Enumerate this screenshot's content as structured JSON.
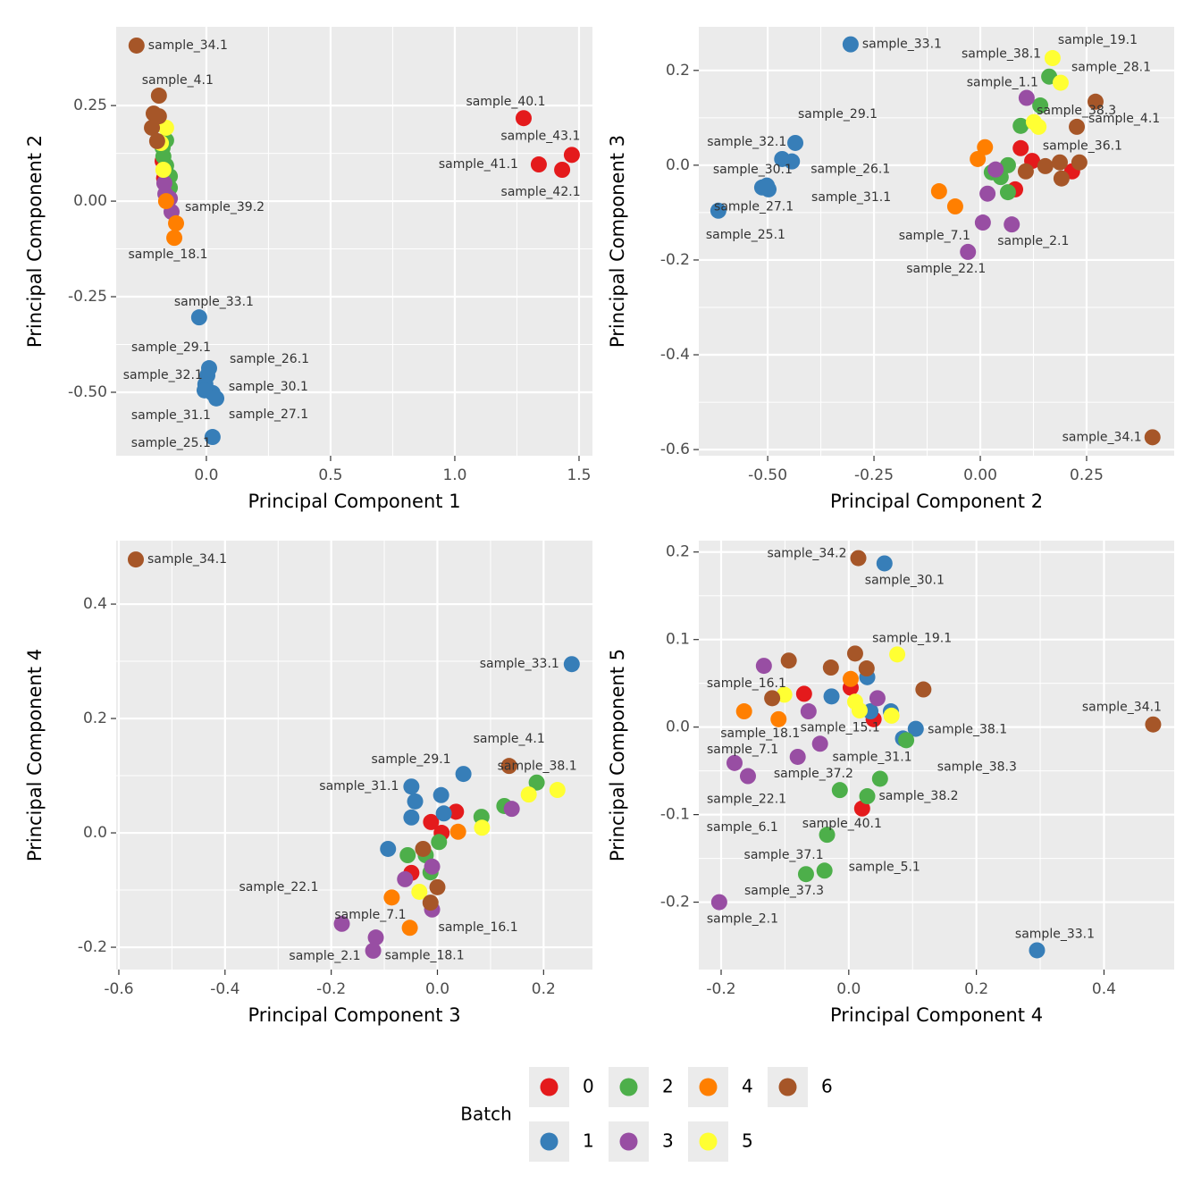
{
  "legend_title": "Batch",
  "chart_data": [
    {
      "type": "scatter",
      "xlabel": "Principal Component 1",
      "ylabel": "Principal Component 2",
      "grid": true,
      "xlim": [
        -0.363,
        1.554
      ],
      "ylim": [
        -0.666,
        0.456
      ],
      "xticks": [
        {
          "value": 0,
          "label": "0.0"
        },
        0.5,
        {
          "value": 1,
          "label": "1.0"
        },
        1.5
      ],
      "yticks": [
        {
          "value": -0.5,
          "label": "-0.50"
        },
        -0.25,
        {
          "value": 0,
          "label": "0.00"
        },
        0.25
      ],
      "series": [
        {
          "name": "0",
          "color": "#E41A1C",
          "x": [
            1.277,
            1.471,
            1.338,
            1.432,
            -0.176,
            -0.17
          ],
          "values": [
            0.217,
            0.121,
            0.096,
            0.082,
            0.105,
            0.06
          ],
          "labels": [
            "sample_40.1",
            "sample_43.1",
            "sample_41.1",
            "sample_42.1",
            null,
            null
          ]
        },
        {
          "name": "1",
          "color": "#377EB8",
          "x": [
            -0.029,
            0.011,
            0.004,
            -0.004,
            0.025,
            -0.007,
            0.04,
            0.025
          ],
          "values": [
            -0.304,
            -0.437,
            -0.456,
            -0.479,
            -0.502,
            -0.495,
            -0.516,
            -0.617
          ],
          "labels": [
            "sample_33.1",
            "sample_26.1",
            "sample_29.1",
            "sample_32.1",
            "sample_30.1",
            "sample_31.1",
            "sample_27.1",
            "sample_25.1"
          ]
        },
        {
          "name": "2",
          "color": "#4DAF4A",
          "x": [
            -0.162,
            -0.176,
            -0.162,
            -0.147,
            -0.147,
            -0.173
          ],
          "values": [
            0.159,
            0.14,
            0.093,
            0.065,
            0.035,
            0.117
          ],
          "labels": [
            null,
            null,
            null,
            null,
            null,
            null
          ]
        },
        {
          "name": "3",
          "color": "#984EA3",
          "x": [
            -0.165,
            -0.14,
            -0.147,
            -0.169
          ],
          "values": [
            0.019,
            -0.028,
            0.007,
            0.047
          ],
          "labels": [
            null,
            null,
            null,
            null
          ]
        },
        {
          "name": "4",
          "color": "#FF7F00",
          "x": [
            -0.122,
            -0.129,
            -0.162
          ],
          "values": [
            -0.058,
            -0.096,
            0.0
          ],
          "labels": [
            "sample_39.2",
            "sample_18.1",
            null
          ]
        },
        {
          "name": "5",
          "color": "#FFFF33",
          "x": [
            -0.162,
            -0.173,
            -0.183
          ],
          "values": [
            0.192,
            0.082,
            0.152
          ],
          "labels": [
            null,
            null,
            null
          ]
        },
        {
          "name": "6",
          "color": "#A65628",
          "x": [
            -0.281,
            -0.191,
            -0.212,
            -0.219,
            -0.198,
            -0.191
          ],
          "values": [
            0.407,
            0.276,
            0.229,
            0.192,
            0.157,
            0.222
          ],
          "labels": [
            "sample_34.1",
            "sample_4.1",
            null,
            null,
            null,
            null
          ]
        }
      ]
    },
    {
      "type": "scatter",
      "xlabel": "Principal Component 2",
      "ylabel": "Principal Component 3",
      "grid": true,
      "xlim": [
        -0.662,
        0.456
      ],
      "ylim": [
        -0.613,
        0.292
      ],
      "xticks": [
        {
          "value": -0.5,
          "label": "-0.50"
        },
        -0.25,
        {
          "value": 0,
          "label": "0.00"
        },
        0.25
      ],
      "yticks": [
        -0.6,
        -0.4,
        -0.2,
        {
          "value": 0,
          "label": "0.0"
        },
        0.2
      ],
      "series": [
        {
          "name": "0",
          "color": "#E41A1C",
          "x": [
            0.095,
            0.122,
            0.082,
            0.216
          ],
          "values": [
            0.036,
            0.009,
            -0.051,
            -0.013
          ],
          "labels": [
            null,
            null,
            null,
            null
          ]
        },
        {
          "name": "1",
          "color": "#377EB8",
          "x": [
            -0.305,
            -0.435,
            -0.466,
            -0.443,
            -0.513,
            -0.498,
            -0.502,
            -0.616
          ],
          "values": [
            0.255,
            0.047,
            0.013,
            0.008,
            -0.047,
            -0.051,
            -0.043,
            -0.096
          ],
          "labels": [
            "sample_33.1",
            "sample_29.1",
            "sample_32.1",
            "sample_26.1",
            "sample_30.1",
            "sample_31.1",
            "sample_27.1",
            "sample_25.1"
          ]
        },
        {
          "name": "2",
          "color": "#4DAF4A",
          "x": [
            0.162,
            0.141,
            0.095,
            0.065,
            0.027,
            0.048,
            0.065
          ],
          "values": [
            0.187,
            0.126,
            0.083,
            0,
            -0.015,
            -0.025,
            -0.057
          ],
          "labels": [
            "sample_38.1",
            "sample_38.3",
            null,
            null,
            null,
            null,
            null
          ]
        },
        {
          "name": "3",
          "color": "#984EA3",
          "x": [
            0.109,
            0.006,
            0.074,
            -0.029,
            0.017,
            0.036
          ],
          "values": [
            0.142,
            -0.121,
            -0.125,
            -0.183,
            -0.06,
            -0.009
          ],
          "labels": [
            "sample_1.1",
            "sample_7.1",
            "sample_2.1",
            "sample_22.1",
            null,
            null
          ]
        },
        {
          "name": "4",
          "color": "#FF7F00",
          "x": [
            0.011,
            -0.006,
            -0.097,
            -0.059
          ],
          "values": [
            0.038,
            0.013,
            -0.055,
            -0.087
          ],
          "labels": [
            null,
            null,
            null,
            null
          ]
        },
        {
          "name": "5",
          "color": "#FFFF33",
          "x": [
            0.17,
            0.189,
            0.137,
            0.126
          ],
          "values": [
            0.226,
            0.174,
            0.081,
            0.091
          ],
          "labels": [
            "sample_19.1",
            "sample_28.1",
            null,
            null
          ]
        },
        {
          "name": "6",
          "color": "#A65628",
          "x": [
            0.405,
            0.227,
            0.191,
            0.271,
            0.153,
            0.187,
            0.233,
            0.107
          ],
          "values": [
            -0.574,
            0.081,
            -0.028,
            0.134,
            -0.002,
            0.006,
            0.006,
            -0.013
          ],
          "labels": [
            "sample_34.1",
            "sample_4.1",
            "sample_36.1",
            null,
            null,
            null,
            null,
            null
          ]
        }
      ]
    },
    {
      "type": "scatter",
      "xlabel": "Principal Component 3",
      "ylabel": "Principal Component 4",
      "grid": true,
      "xlim": [
        -0.605,
        0.292
      ],
      "ylim": [
        -0.239,
        0.511
      ],
      "xticks": [
        -0.6,
        -0.4,
        -0.2,
        {
          "value": 0,
          "label": "0.0"
        },
        0.2
      ],
      "yticks": [
        -0.2,
        {
          "value": 0,
          "label": "0.0"
        },
        0.2,
        0.4
      ],
      "series": [
        {
          "name": "0",
          "color": "#E41A1C",
          "x": [
            -0.012,
            0.008,
            0.035,
            -0.049
          ],
          "values": [
            0.019,
            0,
            0.037,
            -0.07
          ],
          "labels": [
            null,
            null,
            null,
            null
          ]
        },
        {
          "name": "1",
          "color": "#377EB8",
          "x": [
            0.253,
            0.049,
            -0.049,
            0.007,
            -0.042,
            0.012,
            -0.049,
            -0.093
          ],
          "values": [
            0.295,
            0.103,
            0.081,
            0.066,
            0.055,
            0.034,
            0.027,
            -0.028
          ],
          "labels": [
            "sample_33.1",
            "sample_29.1",
            "sample_31.1",
            null,
            null,
            null,
            null,
            null
          ]
        },
        {
          "name": "2",
          "color": "#4DAF4A",
          "x": [
            0.187,
            0.126,
            0.083,
            0.003,
            -0.056,
            -0.022,
            -0.013
          ],
          "values": [
            0.088,
            0.047,
            0.028,
            -0.016,
            -0.039,
            -0.039,
            -0.069
          ],
          "labels": [
            "sample_38.1",
            null,
            null,
            null,
            null,
            null,
            null
          ]
        },
        {
          "name": "3",
          "color": "#984EA3",
          "x": [
            -0.18,
            -0.116,
            -0.121,
            -0.01,
            0.14,
            -0.061,
            -0.01
          ],
          "values": [
            -0.159,
            -0.183,
            -0.206,
            -0.134,
            0.042,
            -0.081,
            -0.059
          ],
          "labels": [
            "sample_22.1",
            "sample_7.1",
            "sample_2.1",
            "sample_16.1",
            null,
            null,
            null
          ]
        },
        {
          "name": "4",
          "color": "#FF7F00",
          "x": [
            -0.052,
            -0.086,
            0.039
          ],
          "values": [
            -0.166,
            -0.113,
            0.002
          ],
          "labels": [
            "sample_18.1",
            null,
            null
          ]
        },
        {
          "name": "5",
          "color": "#FFFF33",
          "x": [
            0.226,
            0.172,
            0.084,
            -0.034
          ],
          "values": [
            0.075,
            0.067,
            0.009,
            -0.103
          ],
          "labels": [
            null,
            null,
            null,
            null
          ]
        },
        {
          "name": "6",
          "color": "#A65628",
          "x": [
            -0.568,
            0.135,
            -0.027,
            0,
            -0.013
          ],
          "values": [
            0.478,
            0.117,
            -0.028,
            -0.095,
            -0.122
          ],
          "labels": [
            "sample_34.1",
            "sample_4.1",
            null,
            null,
            null
          ]
        }
      ]
    },
    {
      "type": "scatter",
      "xlabel": "Principal Component 4",
      "ylabel": "Principal Component 5",
      "grid": true,
      "xlim": [
        -0.235,
        0.51
      ],
      "ylim": [
        -0.277,
        0.213
      ],
      "xticks": [
        -0.2,
        {
          "value": 0,
          "label": "0.0"
        },
        0.2,
        0.4
      ],
      "yticks": [
        -0.2,
        -0.1,
        {
          "value": 0,
          "label": "0.0"
        },
        0.1,
        0.2
      ],
      "series": [
        {
          "name": "0",
          "color": "#E41A1C",
          "x": [
            0.021,
            0.003,
            -0.07,
            0.039
          ],
          "values": [
            -0.093,
            0.045,
            0.038,
            0.009
          ],
          "labels": [
            "sample_40.1",
            null,
            null,
            null
          ]
        },
        {
          "name": "1",
          "color": "#377EB8",
          "x": [
            0.056,
            0.295,
            0.085,
            0.029,
            -0.027,
            0.034,
            0.066,
            0.105
          ],
          "values": [
            0.187,
            -0.255,
            -0.013,
            0.057,
            0.035,
            0.018,
            0.018,
            -0.002
          ],
          "labels": [
            "sample_30.1",
            "sample_33.1",
            "sample_31.1",
            null,
            null,
            null,
            null,
            null
          ]
        },
        {
          "name": "2",
          "color": "#4DAF4A",
          "x": [
            0.09,
            0.049,
            0.029,
            -0.014,
            -0.034,
            -0.038,
            -0.067
          ],
          "values": [
            -0.015,
            -0.059,
            -0.079,
            -0.072,
            -0.123,
            -0.164,
            -0.168
          ],
          "labels": [
            "sample_38.1",
            "sample_38.3",
            "sample_38.2",
            "sample_37.2",
            "sample_37.1",
            "sample_5.1",
            "sample_37.3"
          ]
        },
        {
          "name": "3",
          "color": "#984EA3",
          "x": [
            -0.133,
            -0.045,
            -0.179,
            -0.158,
            -0.08,
            -0.203,
            -0.063,
            0.045
          ],
          "values": [
            0.07,
            -0.019,
            -0.041,
            -0.056,
            -0.034,
            -0.2,
            0.018,
            0.033
          ],
          "labels": [
            "sample_16.1",
            "sample_15.1",
            "sample_7.1",
            "sample_22.1",
            "sample_6.1",
            "sample_2.1",
            null,
            null
          ]
        },
        {
          "name": "4",
          "color": "#FF7F00",
          "x": [
            -0.11,
            -0.164,
            0.003
          ],
          "values": [
            0.009,
            0.018,
            0.055
          ],
          "labels": [
            "sample_18.1",
            null,
            null
          ]
        },
        {
          "name": "5",
          "color": "#FFFF33",
          "x": [
            0.076,
            -0.101,
            0.067,
            0.01,
            0.017
          ],
          "values": [
            0.083,
            0.037,
            0.013,
            0.029,
            0.019
          ],
          "labels": [
            "sample_19.1",
            null,
            null,
            null,
            null
          ]
        },
        {
          "name": "6",
          "color": "#A65628",
          "x": [
            0.015,
            0.477,
            -0.094,
            -0.028,
            0.01,
            0.028,
            0.117,
            -0.12
          ],
          "values": [
            0.193,
            0.003,
            0.076,
            0.068,
            0.084,
            0.067,
            0.043,
            0.033
          ],
          "labels": [
            "sample_34.2",
            "sample_34.1",
            null,
            null,
            null,
            null,
            null,
            null
          ]
        }
      ]
    }
  ]
}
